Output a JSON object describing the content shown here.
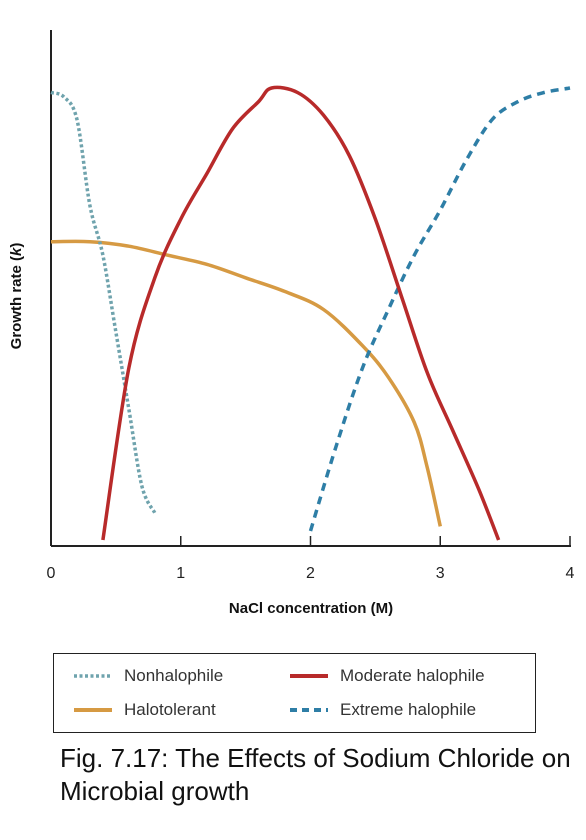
{
  "caption": "Fig. 7.17: The Effects of Sodium Chloride on Microbial growth",
  "chart_data": {
    "type": "line",
    "title": "",
    "xlabel": "NaCl concentration (M)",
    "ylabel": "Growth rate (k)",
    "xlim": [
      0,
      4
    ],
    "ylim": [
      0,
      1
    ],
    "xticks": [
      "0",
      "1",
      "2",
      "3",
      "4"
    ],
    "y_tick_labels": false,
    "grid": false,
    "legend_position": "bottom",
    "series": [
      {
        "name": "Nonhalophile",
        "color": "#6fa3ad",
        "style": "dotted",
        "points": [
          [
            0.0,
            0.99
          ],
          [
            0.1,
            0.98
          ],
          [
            0.2,
            0.93
          ],
          [
            0.3,
            0.74
          ],
          [
            0.4,
            0.63
          ],
          [
            0.5,
            0.46
          ],
          [
            0.6,
            0.29
          ],
          [
            0.7,
            0.12
          ],
          [
            0.8,
            0.06
          ]
        ]
      },
      {
        "name": "Moderate halophile",
        "color": "#b82a2a",
        "style": "solid",
        "points": [
          [
            0.4,
            0.0
          ],
          [
            0.6,
            0.38
          ],
          [
            0.8,
            0.58
          ],
          [
            1.0,
            0.71
          ],
          [
            1.2,
            0.81
          ],
          [
            1.4,
            0.91
          ],
          [
            1.6,
            0.97
          ],
          [
            1.7,
            1.0
          ],
          [
            1.9,
            0.99
          ],
          [
            2.1,
            0.94
          ],
          [
            2.3,
            0.85
          ],
          [
            2.5,
            0.71
          ],
          [
            2.7,
            0.54
          ],
          [
            2.9,
            0.37
          ],
          [
            3.1,
            0.24
          ],
          [
            3.3,
            0.11
          ],
          [
            3.45,
            0.0
          ]
        ]
      },
      {
        "name": "Halotolerant",
        "color": "#d69a43",
        "style": "solid",
        "points": [
          [
            0.0,
            0.66
          ],
          [
            0.3,
            0.66
          ],
          [
            0.6,
            0.65
          ],
          [
            0.9,
            0.63
          ],
          [
            1.2,
            0.61
          ],
          [
            1.5,
            0.58
          ],
          [
            1.8,
            0.55
          ],
          [
            2.1,
            0.51
          ],
          [
            2.4,
            0.43
          ],
          [
            2.6,
            0.36
          ],
          [
            2.8,
            0.26
          ],
          [
            2.9,
            0.16
          ],
          [
            3.0,
            0.03
          ]
        ]
      },
      {
        "name": "Extreme halophile",
        "color": "#2e7ea6",
        "style": "dashed",
        "points": [
          [
            2.0,
            0.02
          ],
          [
            2.2,
            0.21
          ],
          [
            2.4,
            0.38
          ],
          [
            2.6,
            0.51
          ],
          [
            2.8,
            0.63
          ],
          [
            3.0,
            0.73
          ],
          [
            3.2,
            0.84
          ],
          [
            3.4,
            0.93
          ],
          [
            3.6,
            0.97
          ],
          [
            3.8,
            0.99
          ],
          [
            4.0,
            1.0
          ]
        ]
      }
    ]
  },
  "legend": {
    "items": [
      {
        "label": "Nonhalophile",
        "color": "#6fa3ad",
        "style": "dotted"
      },
      {
        "label": "Moderate halophile",
        "color": "#b82a2a",
        "style": "solid"
      },
      {
        "label": "Halotolerant",
        "color": "#d69a43",
        "style": "solid"
      },
      {
        "label": "Extreme halophile",
        "color": "#2e7ea6",
        "style": "dashed"
      }
    ]
  }
}
